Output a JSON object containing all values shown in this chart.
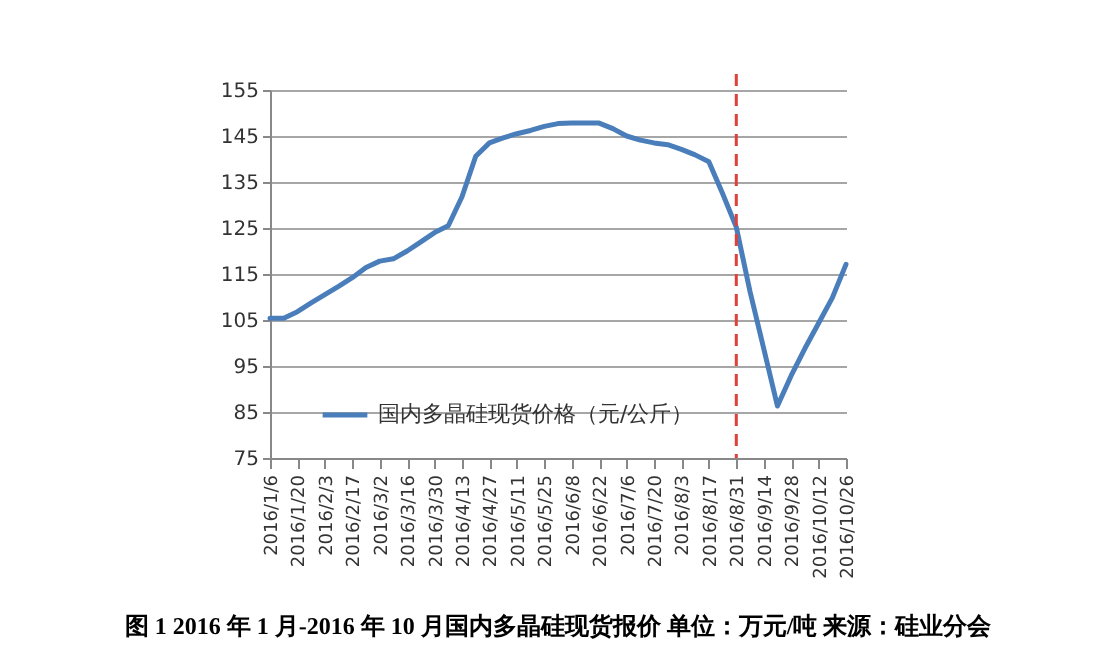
{
  "chart_data": {
    "type": "line",
    "categories": [
      "2016/1/6",
      null,
      "2016/1/20",
      null,
      "2016/2/3",
      null,
      "2016/2/17",
      null,
      "2016/3/2",
      null,
      "2016/3/16",
      null,
      "2016/3/30",
      null,
      "2016/4/13",
      null,
      "2016/4/27",
      null,
      "2016/5/11",
      null,
      "2016/5/25",
      null,
      "2016/6/8",
      null,
      "2016/6/22",
      null,
      "2016/7/6",
      null,
      "2016/7/20",
      null,
      "2016/8/3",
      null,
      "2016/8/17",
      null,
      "2016/8/31",
      null,
      "2016/9/14",
      null,
      "2016/9/28",
      null,
      "2016/10/12",
      null,
      "2016/10/26"
    ],
    "series": [
      {
        "name": "国内多晶硅现货价格（元/公斤）",
        "color": "#4a7ebb",
        "values": [
          105.4,
          105.4,
          106.8,
          108.7,
          110.5,
          112.3,
          114.2,
          116.4,
          117.8,
          118.3,
          120.0,
          122.0,
          124.0,
          125.5,
          131.8,
          140.6,
          143.5,
          144.6,
          145.5,
          146.2,
          147.1,
          147.7,
          147.8,
          147.8,
          147.8,
          146.6,
          145.0,
          144.1,
          143.5,
          143.1,
          142.1,
          140.9,
          139.4,
          132.5,
          125.2,
          111.2,
          98.8,
          86.3,
          92.9,
          98.8,
          104.3,
          109.8,
          117.1
        ]
      }
    ],
    "ylim": [
      75,
      155
    ],
    "yticks": [
      75,
      85,
      95,
      105,
      115,
      125,
      135,
      145,
      155
    ],
    "grid": "y",
    "legend": "bottom left",
    "line_style": "solid",
    "ref_lines": [
      {
        "axis": "x",
        "value": "2016/8/31",
        "color": "#e0403a",
        "line_style": "dashed"
      }
    ],
    "annotations": [
      "图 1   2016 年 1 月-2016 年 10 月国内多晶硅现货报价    单位：万元/吨    来源：硅业分会"
    ]
  }
}
